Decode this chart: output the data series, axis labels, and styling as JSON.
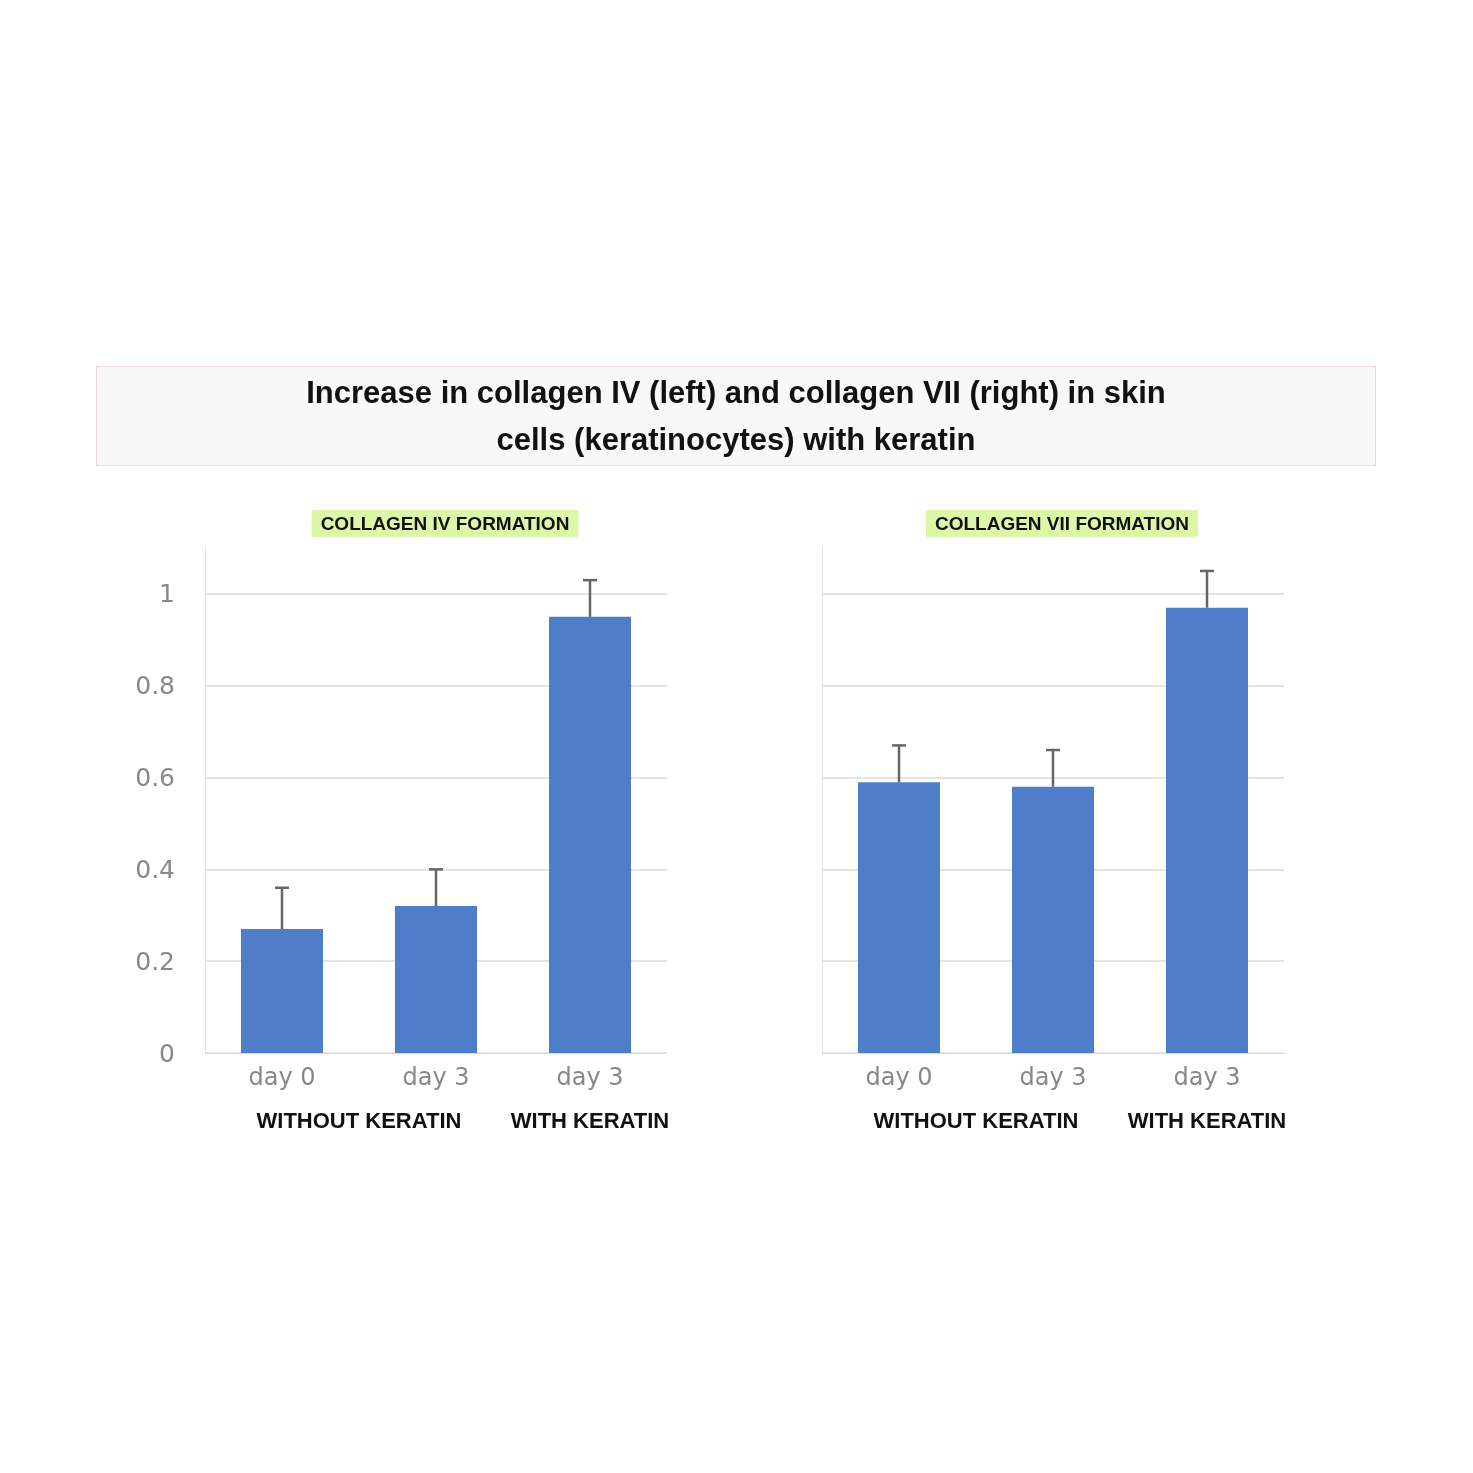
{
  "chart_data": [
    {
      "type": "bar",
      "title": "Increase in collagen IV (left) and collagen VII (right) in skin cells (keratinocytes) with keratin",
      "subtitle": "COLLAGEN IV FORMATION",
      "categories": [
        "day 0",
        "day 3",
        "day 3"
      ],
      "values": [
        0.27,
        0.32,
        0.95
      ],
      "errors": [
        [
          0.27,
          0.36
        ],
        [
          0.32,
          0.4
        ],
        [
          0.95,
          1.03
        ]
      ],
      "color": "#4f7ec8",
      "ylim": [
        0,
        1.1
      ],
      "yticks": [
        0,
        0.2,
        0.4,
        0.6,
        0.8,
        1
      ],
      "grid": "y",
      "annotations": [
        "WITHOUT KERATIN",
        "WITH KERATIN"
      ]
    },
    {
      "type": "bar",
      "subtitle": "COLLAGEN VII FORMATION",
      "categories": [
        "day 0",
        "day 3",
        "day 3"
      ],
      "values": [
        0.59,
        0.58,
        0.97
      ],
      "errors": [
        [
          0.59,
          0.67
        ],
        [
          0.58,
          0.66
        ],
        [
          0.97,
          1.05
        ]
      ],
      "color": "#4f7ec8",
      "ylim": [
        0,
        1.1
      ],
      "yticks": [
        0,
        0.2,
        0.4,
        0.6,
        0.8,
        1
      ],
      "grid": "y",
      "tick_labels": "x",
      "annotations": [
        "WITHOUT KERATIN",
        "WITH KERATIN"
      ]
    }
  ]
}
